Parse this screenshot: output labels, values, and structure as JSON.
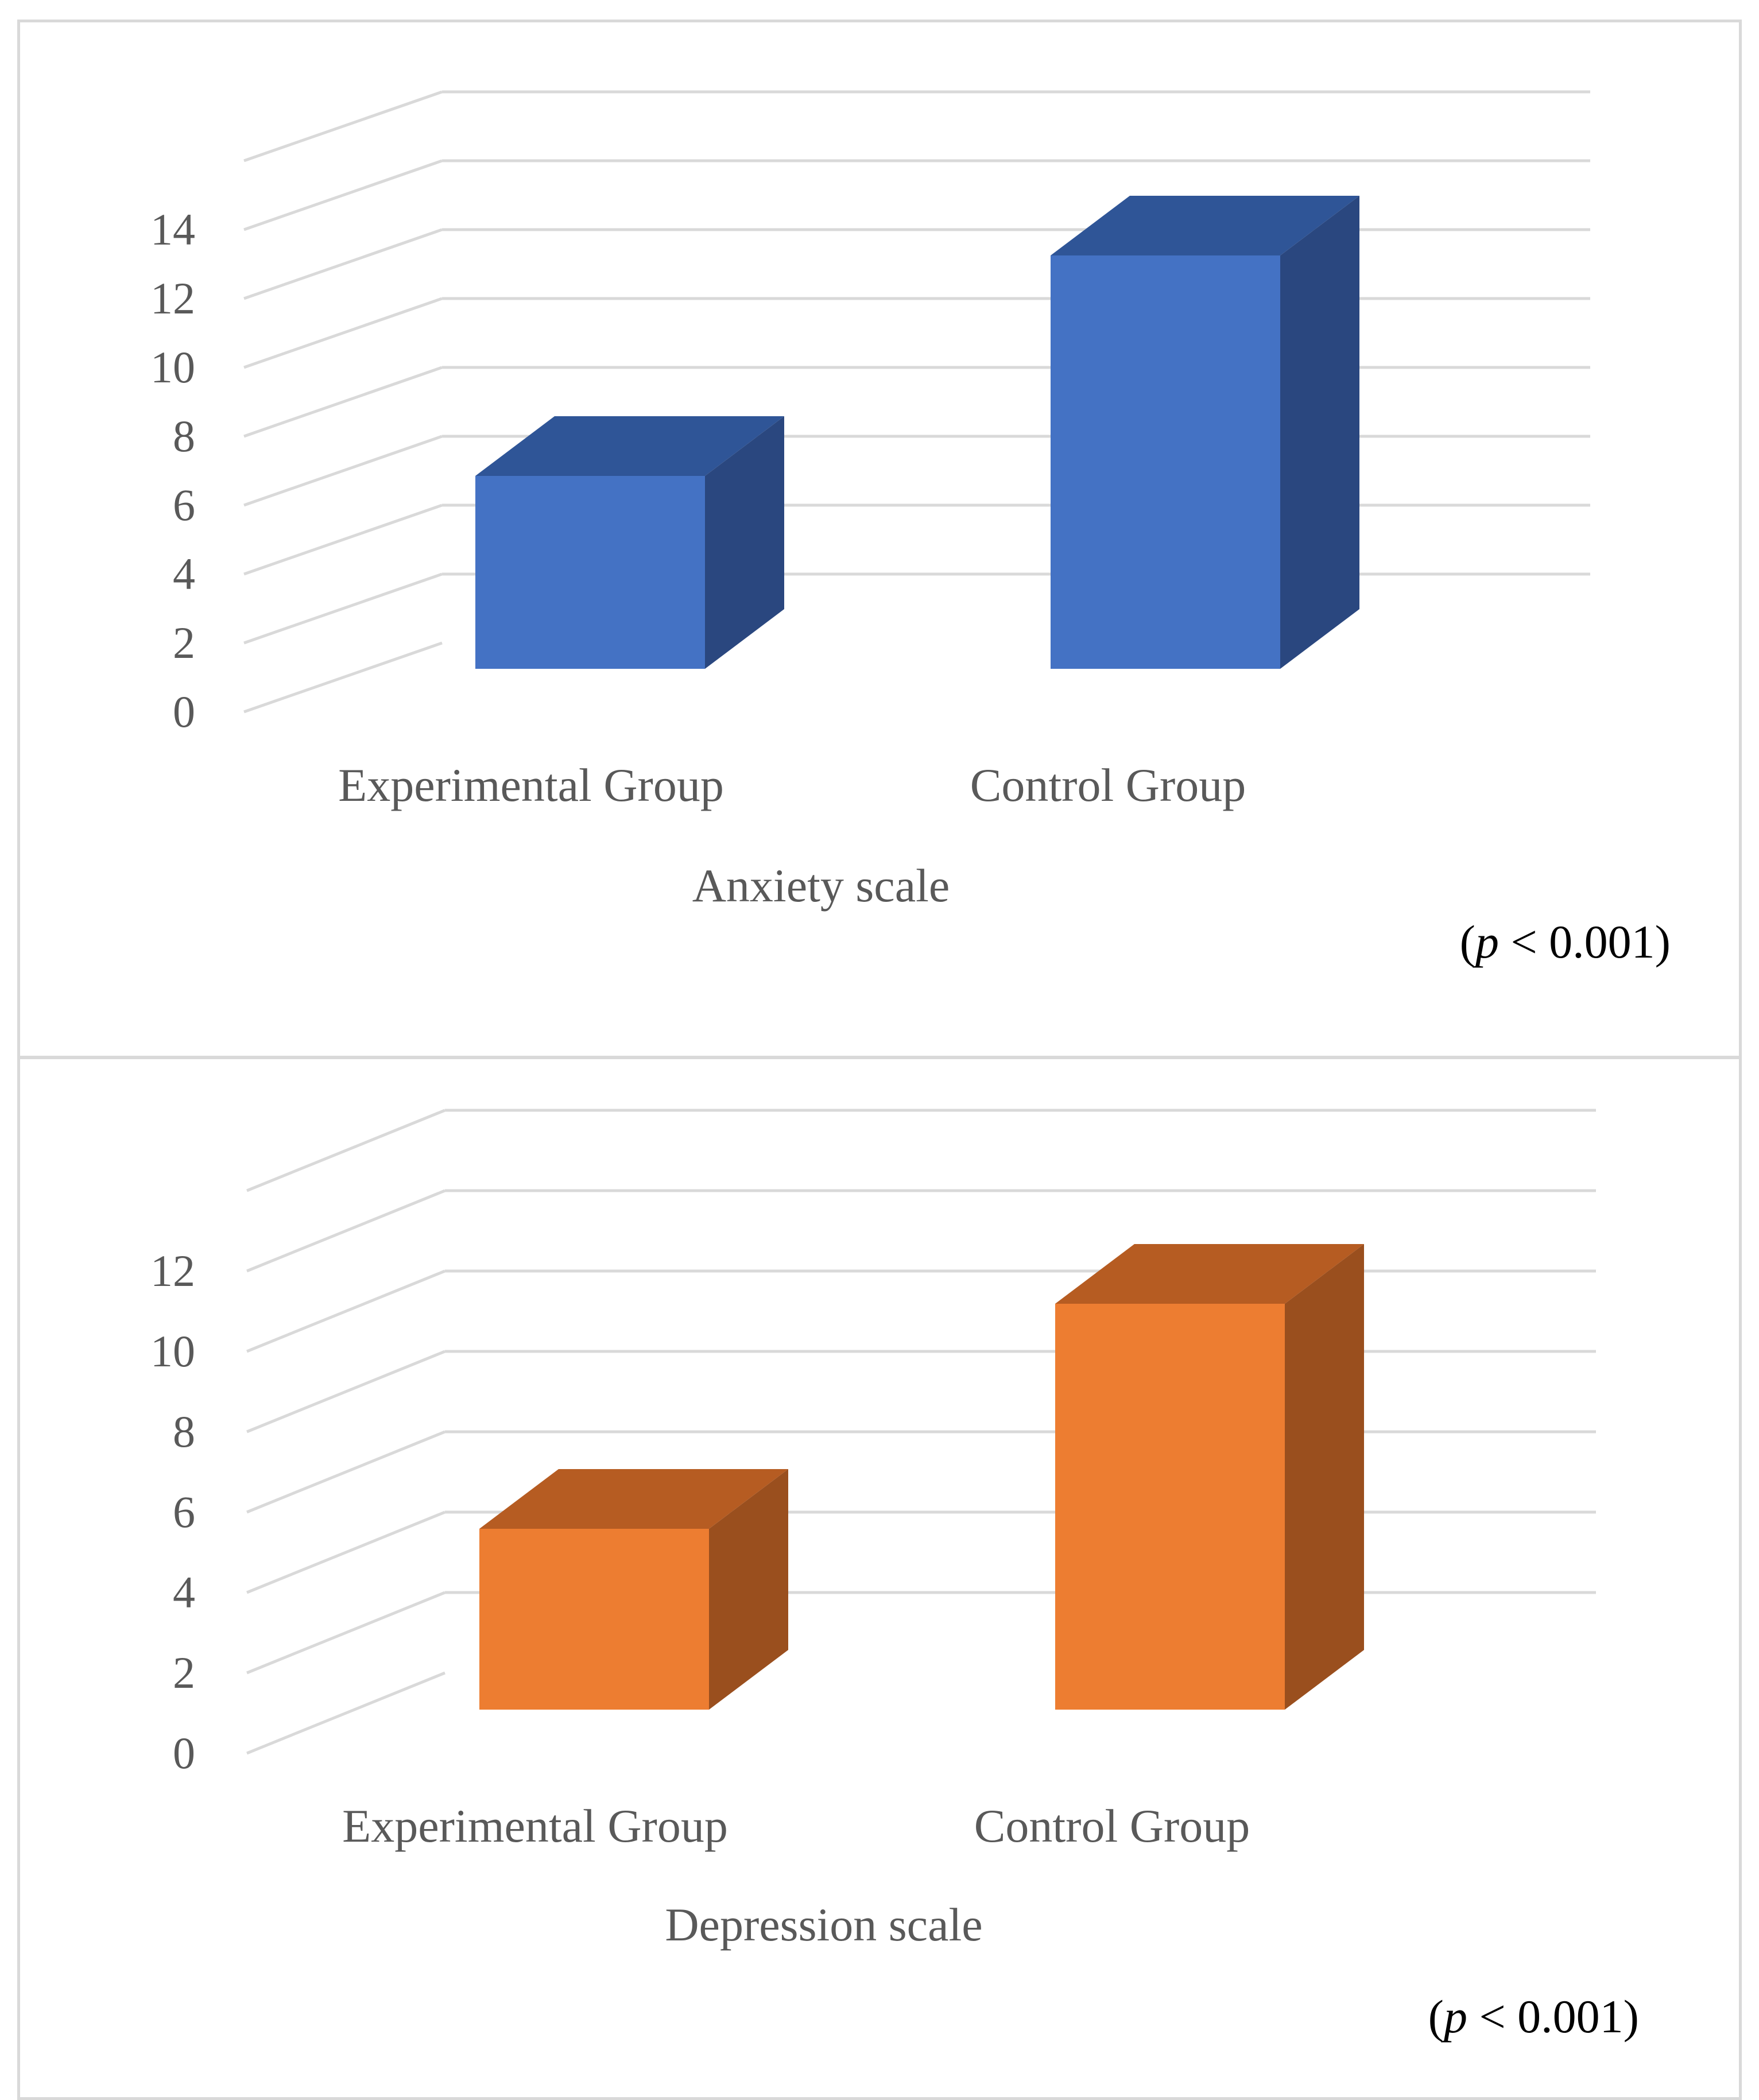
{
  "chart_data": [
    {
      "type": "bar",
      "categories": [
        "Experimental Group",
        "Control Group"
      ],
      "values": [
        5.6,
        12
      ],
      "xlabel": "Anxiety scale",
      "ylim": [
        0,
        14
      ],
      "yticks": [
        "0",
        "2",
        "4",
        "6",
        "8",
        "10",
        "12",
        "14"
      ],
      "annotation": {
        "open": "(",
        "italic": "p",
        "rest": " < 0.001)"
      },
      "grid": true,
      "colors": {
        "front": "#4472c4",
        "top": "#2f5597",
        "side": "#2a477f"
      }
    },
    {
      "type": "bar",
      "categories": [
        "Experimental Group",
        "Control Group"
      ],
      "values": [
        4.5,
        10.1
      ],
      "xlabel": "Depression scale",
      "ylim": [
        0,
        12
      ],
      "yticks": [
        "0",
        "2",
        "4",
        "6",
        "8",
        "10",
        "12"
      ],
      "annotation": {
        "open": "(",
        "italic": "p",
        "rest": " < 0.001)"
      },
      "grid": true,
      "colors": {
        "front": "#ed7d31",
        "top": "#b65c22",
        "side": "#9a4f1e"
      }
    }
  ]
}
